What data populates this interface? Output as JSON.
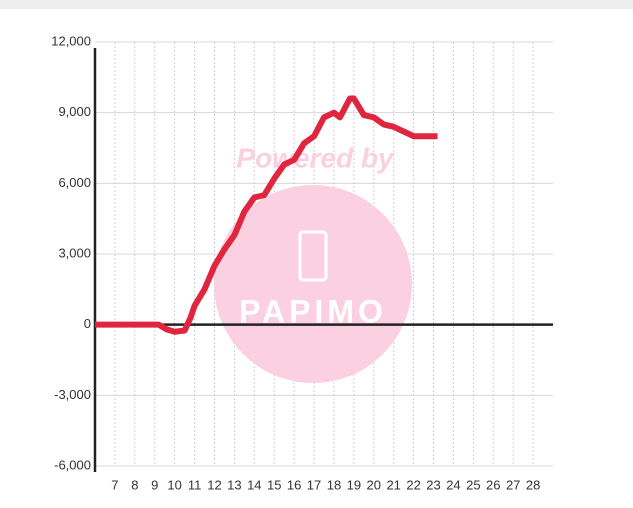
{
  "chart_data": {
    "type": "line",
    "watermark": {
      "top": "Powered by",
      "bottom": "PAPIMO"
    },
    "x": [
      6,
      9.2,
      9.6,
      10,
      10.5,
      10.8,
      11,
      11.5,
      12,
      12.5,
      13,
      13.5,
      14,
      14.5,
      15,
      15.5,
      16,
      16.5,
      17,
      17.5,
      18,
      18.3,
      18.8,
      19,
      19.5,
      20,
      20.5,
      21,
      21.5,
      22,
      23.2
    ],
    "series": [
      {
        "color": "#e0263f",
        "values": [
          0,
          0,
          -200,
          -300,
          -250,
          300,
          800,
          1500,
          2500,
          3200,
          3800,
          4800,
          5400,
          5500,
          6200,
          6800,
          7000,
          7700,
          8000,
          8800,
          9000,
          8800,
          9600,
          9600,
          8900,
          8800,
          8500,
          8400,
          8200,
          8000,
          8000
        ]
      }
    ],
    "xlim": [
      6,
      29
    ],
    "ylim": [
      -6000,
      12000
    ],
    "xticks": [
      7,
      8,
      9,
      10,
      11,
      12,
      13,
      14,
      15,
      16,
      17,
      18,
      19,
      20,
      21,
      22,
      23,
      24,
      25,
      26,
      27,
      28
    ],
    "yticks": [
      {
        "value": -6000,
        "label": "-6,000"
      },
      {
        "value": -3000,
        "label": "-3,000"
      },
      0,
      {
        "value": 3000,
        "label": "3,000"
      },
      {
        "value": 6000,
        "label": "6,000"
      },
      {
        "value": 9000,
        "label": "9,000"
      },
      {
        "value": 12000,
        "label": "12,000"
      }
    ],
    "grid": true
  }
}
